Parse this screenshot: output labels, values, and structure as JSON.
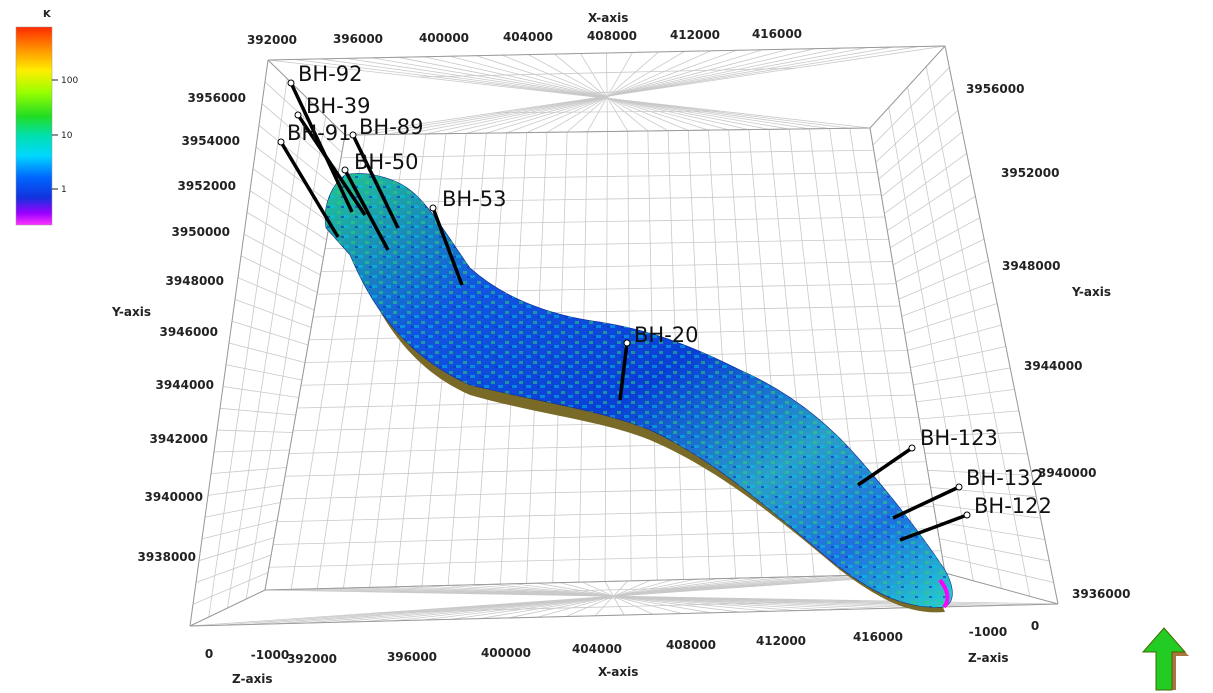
{
  "axes": {
    "x_title": "X-axis",
    "y_title": "Y-axis",
    "z_title": "Z-axis",
    "x_ticks": [
      "392000",
      "396000",
      "400000",
      "404000",
      "408000",
      "412000",
      "416000"
    ],
    "y_ticks_left": [
      "3956000",
      "3954000",
      "3952000",
      "3950000",
      "3948000",
      "3946000",
      "3944000",
      "3942000",
      "3940000",
      "3938000"
    ],
    "y_ticks_right": [
      "3956000",
      "3952000",
      "3948000",
      "3944000",
      "3940000",
      "3936000"
    ],
    "z_ticks_left": [
      "0",
      "-1000"
    ],
    "z_ticks_right": [
      "-1000",
      "0"
    ]
  },
  "legend": {
    "title": "K",
    "ticks": [
      "100",
      "10",
      "1"
    ],
    "colors": [
      "#ff2a00",
      "#ffd400",
      "#cfff00",
      "#33e000",
      "#00e8a0",
      "#00e4ff",
      "#0066ff",
      "#0022dd",
      "#8a00ff",
      "#ff33ff"
    ]
  },
  "wells": [
    {
      "name": "BH-92"
    },
    {
      "name": "BH-39"
    },
    {
      "name": "BH-91"
    },
    {
      "name": "BH-89"
    },
    {
      "name": "BH-50"
    },
    {
      "name": "BH-53"
    },
    {
      "name": "BH-20"
    },
    {
      "name": "BH-123"
    },
    {
      "name": "BH-132"
    },
    {
      "name": "BH-122"
    }
  ],
  "north_arrow": {
    "icon": "north-arrow-icon",
    "color": "#22cc22"
  }
}
